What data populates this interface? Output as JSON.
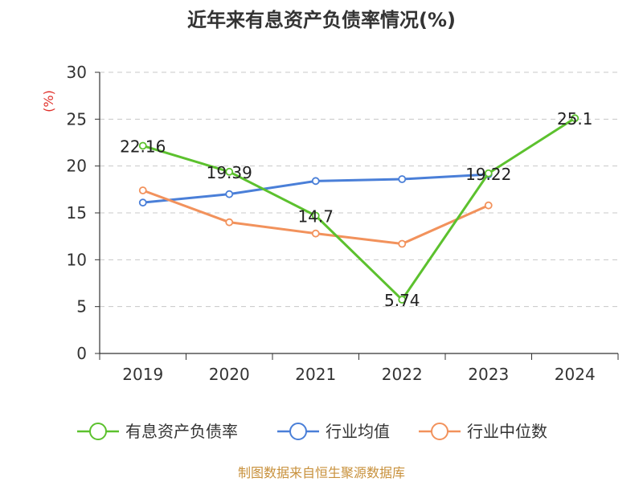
{
  "chart_data": {
    "type": "line",
    "title": "近年来有息资产负债率情况(%)",
    "ylabel": "(%)",
    "xlabel": "",
    "categories": [
      "2019",
      "2020",
      "2021",
      "2022",
      "2023",
      "2024"
    ],
    "ylim": [
      0,
      30
    ],
    "yticks": [
      0,
      5,
      10,
      15,
      20,
      25,
      30
    ],
    "grid": true,
    "legend_position": "bottom",
    "series": [
      {
        "name": "有息资产负债率",
        "color": "#5cc12e",
        "values": [
          22.16,
          19.39,
          14.7,
          5.74,
          19.22,
          25.1
        ],
        "labels": [
          "22.16",
          "19.39",
          "14.7",
          "5.74",
          "19.22",
          "25.1"
        ]
      },
      {
        "name": "行业均值",
        "color": "#4a7fd8",
        "values": [
          16.1,
          17.0,
          18.4,
          18.6,
          19.1,
          null
        ]
      },
      {
        "name": "行业中位数",
        "color": "#f2925c",
        "values": [
          17.4,
          14.0,
          12.8,
          11.7,
          15.8,
          null
        ]
      }
    ]
  },
  "footer": "制图数据来自恒生聚源数据库"
}
